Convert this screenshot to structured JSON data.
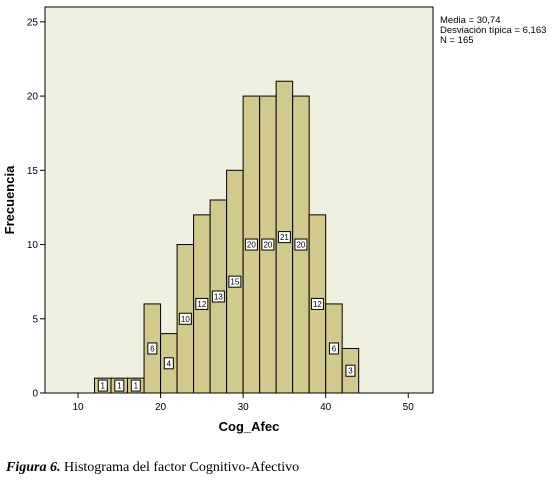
{
  "stats": {
    "mean": "Media = 30,74",
    "std": "Desviación típica = 6,163",
    "n": "N = 165"
  },
  "caption": {
    "label": "Figura 6.",
    "text": "Histograma del factor Cognitivo-Afectivo"
  },
  "colors": {
    "plot_background": "#f0f0e0",
    "bar_fill": "#d2c98c",
    "bar_stroke": "#000000"
  },
  "chart_data": {
    "type": "bar",
    "subtype": "histogram",
    "xlabel": "Cog_Afec",
    "ylabel": "Frecuencia",
    "xlim": [
      6,
      53
    ],
    "ylim": [
      0,
      26
    ],
    "xticks": [
      10,
      20,
      30,
      40,
      50
    ],
    "yticks": [
      0,
      5,
      10,
      15,
      20,
      25
    ],
    "grid": false,
    "bin_width": 2,
    "bins": [
      {
        "start": 12,
        "end": 14,
        "count": 1
      },
      {
        "start": 14,
        "end": 16,
        "count": 1
      },
      {
        "start": 16,
        "end": 18,
        "count": 1
      },
      {
        "start": 18,
        "end": 20,
        "count": 6
      },
      {
        "start": 20,
        "end": 22,
        "count": 4
      },
      {
        "start": 22,
        "end": 24,
        "count": 10
      },
      {
        "start": 24,
        "end": 26,
        "count": 12
      },
      {
        "start": 26,
        "end": 28,
        "count": 13
      },
      {
        "start": 28,
        "end": 30,
        "count": 15
      },
      {
        "start": 30,
        "end": 32,
        "count": 20
      },
      {
        "start": 32,
        "end": 34,
        "count": 20
      },
      {
        "start": 34,
        "end": 36,
        "count": 21
      },
      {
        "start": 36,
        "end": 38,
        "count": 20
      },
      {
        "start": 38,
        "end": 40,
        "count": 12
      },
      {
        "start": 40,
        "end": 42,
        "count": 6
      },
      {
        "start": 42,
        "end": 44,
        "count": 3
      }
    ]
  }
}
